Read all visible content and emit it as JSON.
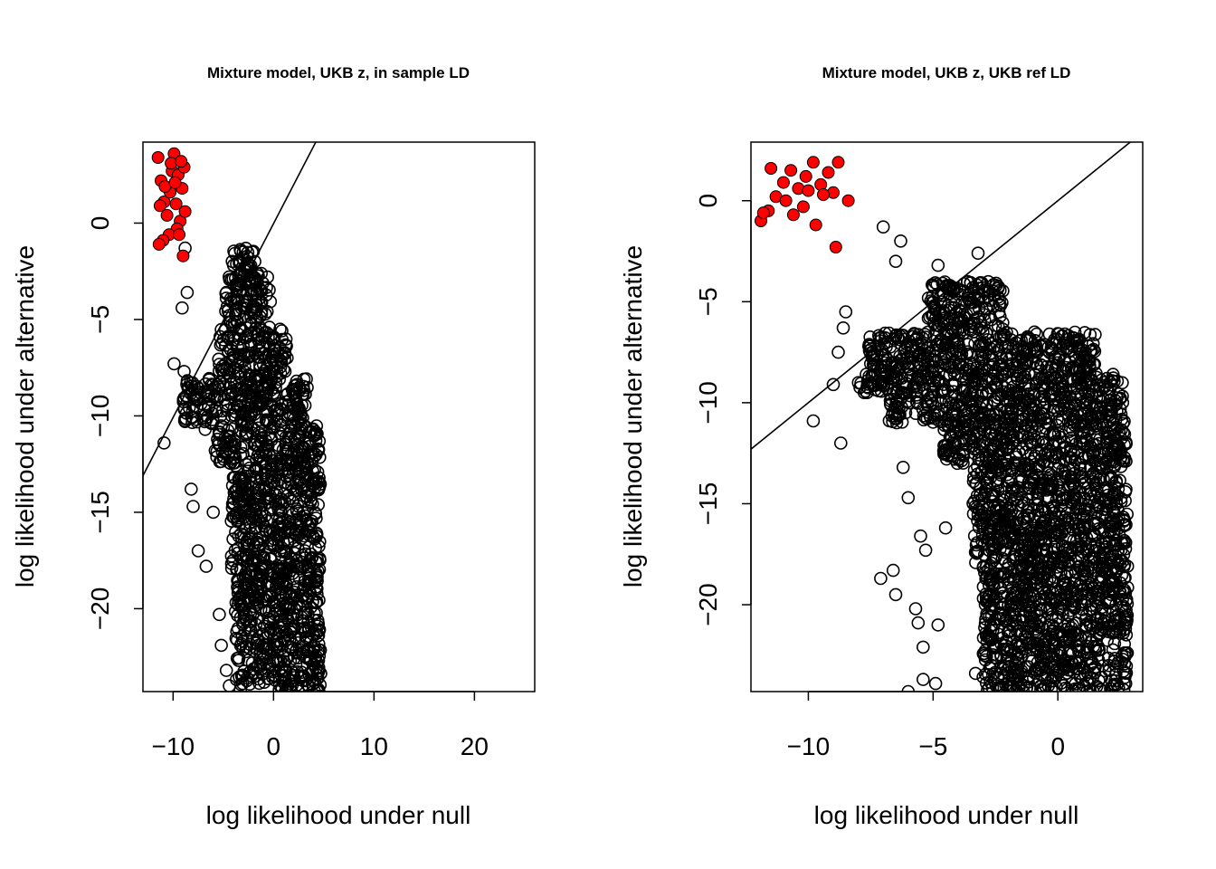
{
  "chart_data": [
    {
      "type": "scatter",
      "title": "Mixture model, UKB z, in sample LD",
      "xlabel": "log likelihood under null",
      "ylabel": "log likelihood under alternative",
      "xlim": [
        -13,
        26
      ],
      "ylim": [
        -24.3,
        4.2
      ],
      "xticks": [
        -10,
        0,
        10,
        20
      ],
      "yticks": [
        0,
        -5,
        -10,
        -15,
        -20
      ],
      "grid": false,
      "legend": "none",
      "reference_line": {
        "x1": -13,
        "y1": -13.1,
        "x2": 4.7,
        "y2": 4.7
      },
      "colors": {
        "null_points": "#000000",
        "selected_points": "#ff0000"
      },
      "selected_points": [
        [
          -11.5,
          3.4
        ],
        [
          -11.2,
          2.2
        ],
        [
          -10.9,
          1.1
        ],
        [
          -10.6,
          0.4
        ],
        [
          -10.3,
          1.6
        ],
        [
          -10.1,
          2.7
        ],
        [
          -9.9,
          3.6
        ],
        [
          -9.7,
          1.0
        ],
        [
          -9.5,
          2.5
        ],
        [
          -9.3,
          0.1
        ],
        [
          -9.1,
          1.8
        ],
        [
          -8.9,
          2.9
        ],
        [
          -8.8,
          0.6
        ],
        [
          -9.6,
          -0.3
        ],
        [
          -10.4,
          -0.6
        ],
        [
          -11.0,
          -0.9
        ],
        [
          -11.4,
          -1.1
        ],
        [
          -9.0,
          -1.7
        ],
        [
          -10.8,
          1.9
        ],
        [
          -9.8,
          2.1
        ],
        [
          -10.2,
          3.1
        ],
        [
          -9.2,
          3.2
        ],
        [
          -11.3,
          0.9
        ],
        [
          -9.4,
          -0.6
        ]
      ],
      "null_points": [
        [
          -8.8,
          -1.3
        ],
        [
          -8.6,
          -3.6
        ],
        [
          -9.1,
          -4.4
        ],
        [
          -9.9,
          -7.3
        ],
        [
          -10.9,
          -11.4
        ],
        [
          -8.9,
          -7.7
        ],
        [
          -8.2,
          -13.8
        ],
        [
          -8.0,
          -14.7
        ],
        [
          -7.5,
          -17.0
        ],
        [
          -6.7,
          -17.8
        ],
        [
          -5.4,
          -20.3
        ],
        [
          -5.2,
          -21.9
        ],
        [
          -4.7,
          -23.2
        ],
        [
          -4.4,
          -24.0
        ],
        [
          -6.0,
          -15.0
        ],
        [
          -7.6,
          -9.2
        ],
        [
          -6.8,
          -10.7
        ],
        [
          -5.8,
          -11.8
        ]
      ],
      "null_cloud": [
        {
          "x": [
            -4.4,
            -1.8
          ],
          "y": [
            -2.6,
            -1.3
          ]
        },
        {
          "x": [
            -4.8,
            -0.3
          ],
          "y": [
            -5.5,
            -2.6
          ]
        },
        {
          "x": [
            -5.5,
            1.4
          ],
          "y": [
            -8.0,
            -5.5
          ]
        },
        {
          "x": [
            -9.0,
            3.4
          ],
          "y": [
            -10.4,
            -8.0
          ]
        },
        {
          "x": [
            -5.8,
            4.6
          ],
          "y": [
            -12.5,
            -10.4
          ]
        },
        {
          "x": [
            -4.2,
            4.7
          ],
          "y": [
            -18.0,
            -12.5
          ]
        },
        {
          "x": [
            -3.8,
            4.7
          ],
          "y": [
            -24.3,
            -18.0
          ]
        }
      ]
    },
    {
      "type": "scatter",
      "title": "Mixture model, UKB z, UKB ref LD",
      "xlabel": "log likelihood under null",
      "ylabel": "log likelihood under alternative",
      "xlim": [
        -12.3,
        3.4
      ],
      "ylim": [
        -24.3,
        2.9
      ],
      "xticks": [
        -10,
        -5,
        0
      ],
      "yticks": [
        0,
        -5,
        -10,
        -15,
        -20
      ],
      "grid": false,
      "legend": "none",
      "reference_line": {
        "x1": -12.3,
        "y1": -12.3,
        "x2": 2.9,
        "y2": 2.9
      },
      "colors": {
        "null_points": "#000000",
        "selected_points": "#ff0000"
      },
      "selected_points": [
        [
          -11.9,
          -1.0
        ],
        [
          -11.6,
          -0.5
        ],
        [
          -11.3,
          0.2
        ],
        [
          -11.0,
          0.9
        ],
        [
          -10.7,
          1.5
        ],
        [
          -10.4,
          0.6
        ],
        [
          -10.1,
          1.2
        ],
        [
          -9.8,
          1.9
        ],
        [
          -9.5,
          0.8
        ],
        [
          -9.2,
          1.4
        ],
        [
          -8.8,
          1.9
        ],
        [
          -8.4,
          0.0
        ],
        [
          -11.5,
          1.6
        ],
        [
          -10.9,
          0.0
        ],
        [
          -10.2,
          -0.3
        ],
        [
          -9.7,
          -1.2
        ],
        [
          -8.9,
          -2.3
        ],
        [
          -9.0,
          0.4
        ],
        [
          -10.6,
          -0.7
        ],
        [
          -11.8,
          -0.6
        ],
        [
          -9.4,
          0.3
        ],
        [
          -10.0,
          0.5
        ]
      ],
      "null_points": [
        [
          -7.0,
          -1.3
        ],
        [
          -6.3,
          -2.0
        ],
        [
          -6.5,
          -3.0
        ],
        [
          -4.8,
          -3.2
        ],
        [
          -3.2,
          -2.6
        ],
        [
          -5.0,
          -4.2
        ],
        [
          -4.2,
          -4.5
        ],
        [
          -8.5,
          -5.5
        ],
        [
          -8.6,
          -6.3
        ],
        [
          -8.8,
          -7.5
        ],
        [
          -9.0,
          -9.1
        ],
        [
          -9.8,
          -10.9
        ],
        [
          -8.7,
          -12.0
        ],
        [
          -6.1,
          -10.5
        ],
        [
          -6.2,
          -13.2
        ],
        [
          -6.0,
          -14.7
        ],
        [
          -7.1,
          -18.7
        ],
        [
          -6.6,
          -18.3
        ],
        [
          -6.5,
          -19.5
        ],
        [
          -5.7,
          -20.2
        ],
        [
          -5.6,
          -20.9
        ],
        [
          -5.4,
          -22.1
        ],
        [
          -5.4,
          -23.7
        ],
        [
          -4.9,
          -23.9
        ],
        [
          -4.8,
          -21.0
        ],
        [
          -5.3,
          -17.3
        ],
        [
          -5.5,
          -16.6
        ],
        [
          -4.5,
          -16.2
        ],
        [
          -6.0,
          -24.3
        ],
        [
          -3.3,
          -23.4
        ]
      ],
      "null_cloud": [
        {
          "x": [
            -5.2,
            -2.2
          ],
          "y": [
            -6.5,
            -4.0
          ]
        },
        {
          "x": [
            -7.6,
            1.5
          ],
          "y": [
            -8.5,
            -6.5
          ]
        },
        {
          "x": [
            -8.0,
            2.6
          ],
          "y": [
            -9.5,
            -8.5
          ]
        },
        {
          "x": [
            -6.8,
            2.7
          ],
          "y": [
            -11.0,
            -9.5
          ]
        },
        {
          "x": [
            -4.6,
            2.8
          ],
          "y": [
            -13.0,
            -11.0
          ]
        },
        {
          "x": [
            -3.4,
            2.8
          ],
          "y": [
            -18.0,
            -13.0
          ]
        },
        {
          "x": [
            -3.0,
            2.8
          ],
          "y": [
            -24.3,
            -18.0
          ]
        }
      ]
    }
  ]
}
